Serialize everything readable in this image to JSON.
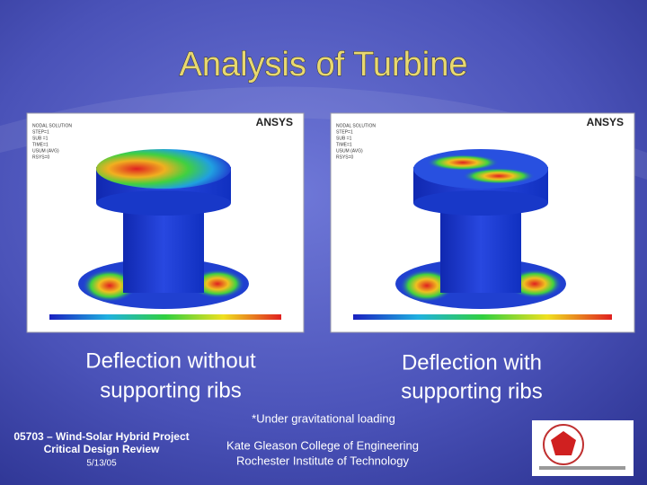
{
  "header": {
    "title": "Analysis of Turbine"
  },
  "figures": [
    {
      "caption": [
        "Deflection without",
        "supporting ribs"
      ],
      "panel": {
        "logo": "ANSYS",
        "lines": [
          "NODAL SOLUTION",
          "STEP=1",
          "SUB =1",
          "TIME=1",
          "USUM (AVG)",
          "RSYS=0"
        ]
      }
    },
    {
      "caption": [
        "Deflection with",
        "supporting ribs"
      ],
      "panel": {
        "logo": "ANSYS",
        "lines": [
          "NODAL SOLUTION",
          "STEP=1",
          "SUB =1",
          "TIME=1",
          "USUM (AVG)",
          "RSYS=0"
        ]
      }
    }
  ],
  "note": "*Under gravitational loading",
  "footer": {
    "project": [
      "05703 – Wind-Solar Hybrid Project",
      "Critical Design Review",
      "5/13/05"
    ],
    "school": [
      "Kate Gleason College of Engineering",
      "Rochester Institute of Technology"
    ]
  }
}
